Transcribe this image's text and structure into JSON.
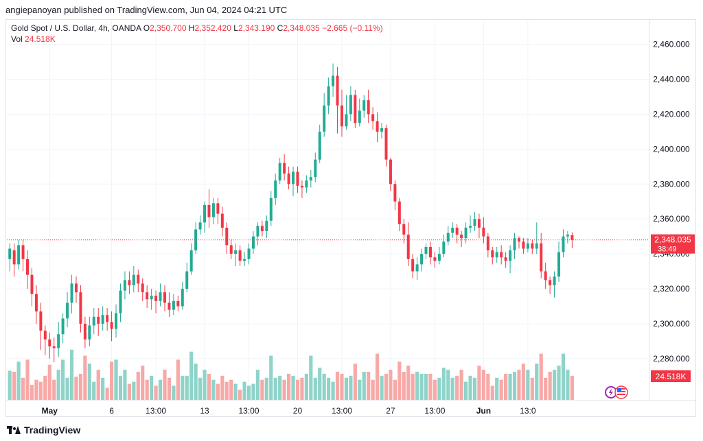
{
  "header": {
    "published": "angiepanoyan published on TradingView.com, Jun 04, 2024 04:21 UTC"
  },
  "legend": {
    "symbol": "Gold Spot / U.S. Dollar, 4h, OANDA",
    "o_label": "O",
    "o_value": "2,350.700",
    "h_label": "H",
    "h_value": "2,352.420",
    "l_label": "L",
    "l_value": "2,343.190",
    "c_label": "C",
    "c_value": "2,348.035",
    "change": "−2.665 (−0.11%)",
    "vol_label": "Vol",
    "vol_value": "24.518K"
  },
  "price_tag": {
    "price": "2,348.035",
    "countdown": "38:49",
    "volume": "24.518K"
  },
  "footer": {
    "brand": "TradingView"
  },
  "colors": {
    "up": "#22ab94",
    "down": "#f23645",
    "vol_up": "#8fd3c9",
    "vol_down": "#f7a9a7",
    "grid": "#f0f3fa"
  },
  "chart_data": {
    "type": "candlestick",
    "interval": "4h",
    "y_ticks": [
      "2,460.000",
      "2,440.000",
      "2,420.000",
      "2,400.000",
      "2,380.000",
      "2,360.000",
      "2,340.000",
      "2,320.000",
      "2,300.000",
      "2,280.000"
    ],
    "y_tick_values": [
      2460,
      2440,
      2420,
      2400,
      2380,
      2360,
      2340,
      2320,
      2300,
      2280
    ],
    "ylim": [
      2256,
      2474
    ],
    "x_ticks": [
      "May",
      "6",
      "13:00",
      "13",
      "13:00",
      "20",
      "13:00",
      "27",
      "13:00",
      "Jun",
      "13:0"
    ],
    "x_tick_index": [
      9,
      23,
      33,
      44,
      54,
      65,
      75,
      86,
      96,
      107,
      117
    ],
    "last_close": 2348.035,
    "candles": [
      [
        2337,
        2343,
        2330,
        2346
      ],
      [
        2342,
        2334,
        2327,
        2346
      ],
      [
        2334,
        2345,
        2331,
        2348
      ],
      [
        2345,
        2337,
        2330,
        2348
      ],
      [
        2337,
        2328,
        2320,
        2342
      ],
      [
        2328,
        2317,
        2310,
        2332
      ],
      [
        2317,
        2307,
        2300,
        2322
      ],
      [
        2307,
        2296,
        2285,
        2312
      ],
      [
        2296,
        2291,
        2282,
        2299
      ],
      [
        2291,
        2287,
        2280,
        2295
      ],
      [
        2287,
        2286,
        2278,
        2292
      ],
      [
        2286,
        2294,
        2281,
        2301
      ],
      [
        2294,
        2303,
        2289,
        2306
      ],
      [
        2303,
        2312,
        2298,
        2318
      ],
      [
        2312,
        2323,
        2306,
        2328
      ],
      [
        2323,
        2318,
        2312,
        2327
      ],
      [
        2318,
        2300,
        2295,
        2322
      ],
      [
        2300,
        2291,
        2286,
        2304
      ],
      [
        2291,
        2299,
        2287,
        2304
      ],
      [
        2299,
        2304,
        2294,
        2309
      ],
      [
        2304,
        2300,
        2293,
        2309
      ],
      [
        2300,
        2305,
        2296,
        2310
      ],
      [
        2305,
        2301,
        2296,
        2309
      ],
      [
        2301,
        2297,
        2290,
        2307
      ],
      [
        2297,
        2306,
        2292,
        2311
      ],
      [
        2306,
        2319,
        2301,
        2323
      ],
      [
        2319,
        2325,
        2314,
        2330
      ],
      [
        2325,
        2322,
        2317,
        2330
      ],
      [
        2322,
        2328,
        2318,
        2333
      ],
      [
        2328,
        2323,
        2318,
        2331
      ],
      [
        2323,
        2318,
        2313,
        2326
      ],
      [
        2318,
        2314,
        2309,
        2322
      ],
      [
        2314,
        2316,
        2308,
        2320
      ],
      [
        2316,
        2313,
        2306,
        2319
      ],
      [
        2313,
        2318,
        2310,
        2323
      ],
      [
        2318,
        2312,
        2307,
        2322
      ],
      [
        2312,
        2308,
        2304,
        2318
      ],
      [
        2308,
        2313,
        2305,
        2317
      ],
      [
        2313,
        2310,
        2307,
        2316
      ],
      [
        2310,
        2320,
        2308,
        2324
      ],
      [
        2320,
        2330,
        2318,
        2335
      ],
      [
        2330,
        2342,
        2328,
        2346
      ],
      [
        2342,
        2354,
        2340,
        2358
      ],
      [
        2354,
        2358,
        2351,
        2362
      ],
      [
        2358,
        2368,
        2352,
        2370
      ],
      [
        2368,
        2361,
        2355,
        2377
      ],
      [
        2361,
        2369,
        2357,
        2372
      ],
      [
        2369,
        2363,
        2357,
        2372
      ],
      [
        2363,
        2355,
        2350,
        2367
      ],
      [
        2355,
        2345,
        2340,
        2358
      ],
      [
        2345,
        2340,
        2337,
        2348
      ],
      [
        2340,
        2342,
        2333,
        2346
      ],
      [
        2342,
        2336,
        2333,
        2345
      ],
      [
        2336,
        2337,
        2333,
        2341
      ],
      [
        2337,
        2343,
        2334,
        2346
      ],
      [
        2343,
        2350,
        2340,
        2353
      ],
      [
        2350,
        2356,
        2345,
        2358
      ],
      [
        2356,
        2353,
        2350,
        2359
      ],
      [
        2353,
        2359,
        2349,
        2362
      ],
      [
        2359,
        2372,
        2356,
        2376
      ],
      [
        2372,
        2382,
        2368,
        2386
      ],
      [
        2382,
        2392,
        2380,
        2395
      ],
      [
        2392,
        2386,
        2382,
        2397
      ],
      [
        2386,
        2380,
        2377,
        2390
      ],
      [
        2380,
        2387,
        2373,
        2390
      ],
      [
        2387,
        2379,
        2375,
        2390
      ],
      [
        2379,
        2378,
        2372,
        2382
      ],
      [
        2378,
        2382,
        2375,
        2385
      ],
      [
        2382,
        2384,
        2378,
        2388
      ],
      [
        2384,
        2394,
        2381,
        2398
      ],
      [
        2394,
        2410,
        2392,
        2414
      ],
      [
        2410,
        2425,
        2407,
        2432
      ],
      [
        2425,
        2436,
        2420,
        2441
      ],
      [
        2436,
        2442,
        2430,
        2449
      ],
      [
        2442,
        2425,
        2409,
        2447
      ],
      [
        2425,
        2413,
        2407,
        2434
      ],
      [
        2413,
        2420,
        2411,
        2431
      ],
      [
        2420,
        2431,
        2416,
        2436
      ],
      [
        2431,
        2415,
        2412,
        2434
      ],
      [
        2415,
        2422,
        2413,
        2429
      ],
      [
        2422,
        2428,
        2418,
        2431
      ],
      [
        2428,
        2420,
        2415,
        2434
      ],
      [
        2420,
        2416,
        2411,
        2424
      ],
      [
        2416,
        2410,
        2404,
        2421
      ],
      [
        2410,
        2412,
        2406,
        2415
      ],
      [
        2412,
        2394,
        2390,
        2414
      ],
      [
        2394,
        2380,
        2376,
        2395
      ],
      [
        2380,
        2370,
        2365,
        2382
      ],
      [
        2370,
        2357,
        2353,
        2372
      ],
      [
        2357,
        2351,
        2346,
        2360
      ],
      [
        2351,
        2337,
        2333,
        2358
      ],
      [
        2337,
        2330,
        2326,
        2340
      ],
      [
        2330,
        2334,
        2325,
        2338
      ],
      [
        2334,
        2340,
        2330,
        2343
      ],
      [
        2340,
        2344,
        2337,
        2346
      ],
      [
        2344,
        2338,
        2334,
        2347
      ],
      [
        2338,
        2336,
        2332,
        2341
      ],
      [
        2336,
        2340,
        2334,
        2344
      ],
      [
        2340,
        2347,
        2338,
        2351
      ],
      [
        2347,
        2352,
        2345,
        2356
      ],
      [
        2352,
        2355,
        2349,
        2358
      ],
      [
        2355,
        2351,
        2346,
        2357
      ],
      [
        2351,
        2349,
        2344,
        2353
      ],
      [
        2349,
        2355,
        2346,
        2358
      ],
      [
        2355,
        2356,
        2352,
        2362
      ],
      [
        2356,
        2360,
        2353,
        2364
      ],
      [
        2360,
        2355,
        2349,
        2363
      ],
      [
        2355,
        2350,
        2346,
        2361
      ],
      [
        2350,
        2342,
        2338,
        2352
      ],
      [
        2342,
        2338,
        2334,
        2344
      ],
      [
        2338,
        2341,
        2335,
        2344
      ],
      [
        2341,
        2338,
        2334,
        2345
      ],
      [
        2338,
        2336,
        2332,
        2341
      ],
      [
        2336,
        2342,
        2329,
        2345
      ],
      [
        2342,
        2349,
        2337,
        2352
      ],
      [
        2349,
        2347,
        2343,
        2350
      ],
      [
        2347,
        2343,
        2340,
        2349
      ],
      [
        2343,
        2346,
        2341,
        2349
      ],
      [
        2346,
        2343,
        2340,
        2348
      ],
      [
        2343,
        2346,
        2340,
        2358
      ],
      [
        2346,
        2330,
        2326,
        2352
      ],
      [
        2330,
        2325,
        2320,
        2335
      ],
      [
        2325,
        2322,
        2317,
        2327
      ],
      [
        2322,
        2327,
        2315,
        2330
      ],
      [
        2327,
        2341,
        2324,
        2347
      ],
      [
        2341,
        2350,
        2338,
        2354
      ],
      [
        2350,
        2351,
        2346,
        2353
      ],
      [
        2350.7,
        2348.035,
        2343.19,
        2352.42
      ]
    ],
    "volumes": [
      29,
      28,
      38,
      22,
      40,
      15,
      20,
      18,
      24,
      35,
      20,
      30,
      40,
      22,
      50,
      23,
      26,
      44,
      36,
      18,
      30,
      22,
      12,
      38,
      40,
      24,
      30,
      16,
      18,
      28,
      34,
      20,
      24,
      14,
      20,
      30,
      22,
      14,
      40,
      24,
      24,
      48,
      36,
      22,
      30,
      26,
      20,
      16,
      24,
      18,
      20,
      16,
      10,
      18,
      14,
      16,
      30,
      20,
      22,
      44,
      22,
      24,
      20,
      26,
      24,
      20,
      22,
      26,
      44,
      22,
      32,
      26,
      22,
      18,
      28,
      26,
      22,
      24,
      36,
      20,
      28,
      28,
      20,
      46,
      24,
      26,
      30,
      20,
      38,
      28,
      34,
      26,
      28,
      26,
      26,
      26,
      20,
      22,
      32,
      30,
      22,
      24,
      30,
      18,
      24,
      22,
      34,
      30,
      26,
      14,
      22,
      20,
      26,
      26,
      28,
      30,
      36,
      30,
      22,
      36,
      46,
      22,
      28,
      30,
      34,
      46,
      30,
      24
    ],
    "vol_ylim": [
      0,
      84
    ]
  }
}
